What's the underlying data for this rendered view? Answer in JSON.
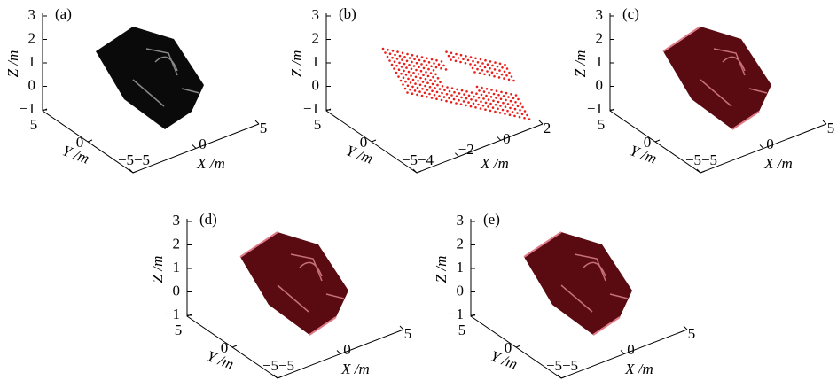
{
  "panels": [
    {
      "label": "(a)",
      "z_axis": {
        "title": "Z /m",
        "ticks": [
          "3",
          "2",
          "1",
          "0",
          "−1"
        ]
      },
      "y_axis": {
        "title": "Y /m",
        "ticks": [
          "5",
          "0",
          "−5"
        ]
      },
      "x_axis": {
        "title": "X /m",
        "ticks": [
          "−5",
          "0",
          "5"
        ]
      }
    },
    {
      "label": "(b)",
      "z_axis": {
        "title": "Z /m",
        "ticks": [
          "3",
          "2",
          "1",
          "0",
          "−1"
        ]
      },
      "y_axis": {
        "title": "Y /m",
        "ticks": [
          "5",
          "0",
          "−5"
        ]
      },
      "x_axis": {
        "title": "X /m",
        "ticks": [
          "−4",
          "−2",
          "0",
          "2"
        ]
      }
    },
    {
      "label": "(c)",
      "z_axis": {
        "title": "Z /m",
        "ticks": [
          "3",
          "2",
          "1",
          "0",
          "−1"
        ]
      },
      "y_axis": {
        "title": "Y /m",
        "ticks": [
          "5",
          "0",
          "−5"
        ]
      },
      "x_axis": {
        "title": "X /m",
        "ticks": [
          "−5",
          "0",
          "5"
        ]
      }
    },
    {
      "label": "(d)",
      "z_axis": {
        "title": "Z /m",
        "ticks": [
          "3",
          "2",
          "1",
          "0",
          "−1"
        ]
      },
      "y_axis": {
        "title": "Y /m",
        "ticks": [
          "5",
          "0",
          "−5"
        ]
      },
      "x_axis": {
        "title": "X /m",
        "ticks": [
          "−5",
          "0",
          "5"
        ]
      }
    },
    {
      "label": "(e)",
      "z_axis": {
        "title": "Z /m",
        "ticks": [
          "3",
          "2",
          "1",
          "0",
          "−1"
        ]
      },
      "y_axis": {
        "title": "Y /m",
        "ticks": [
          "5",
          "0",
          "−5"
        ]
      },
      "x_axis": {
        "title": "X /m",
        "ticks": [
          "−5",
          "0",
          "5"
        ]
      }
    }
  ]
}
